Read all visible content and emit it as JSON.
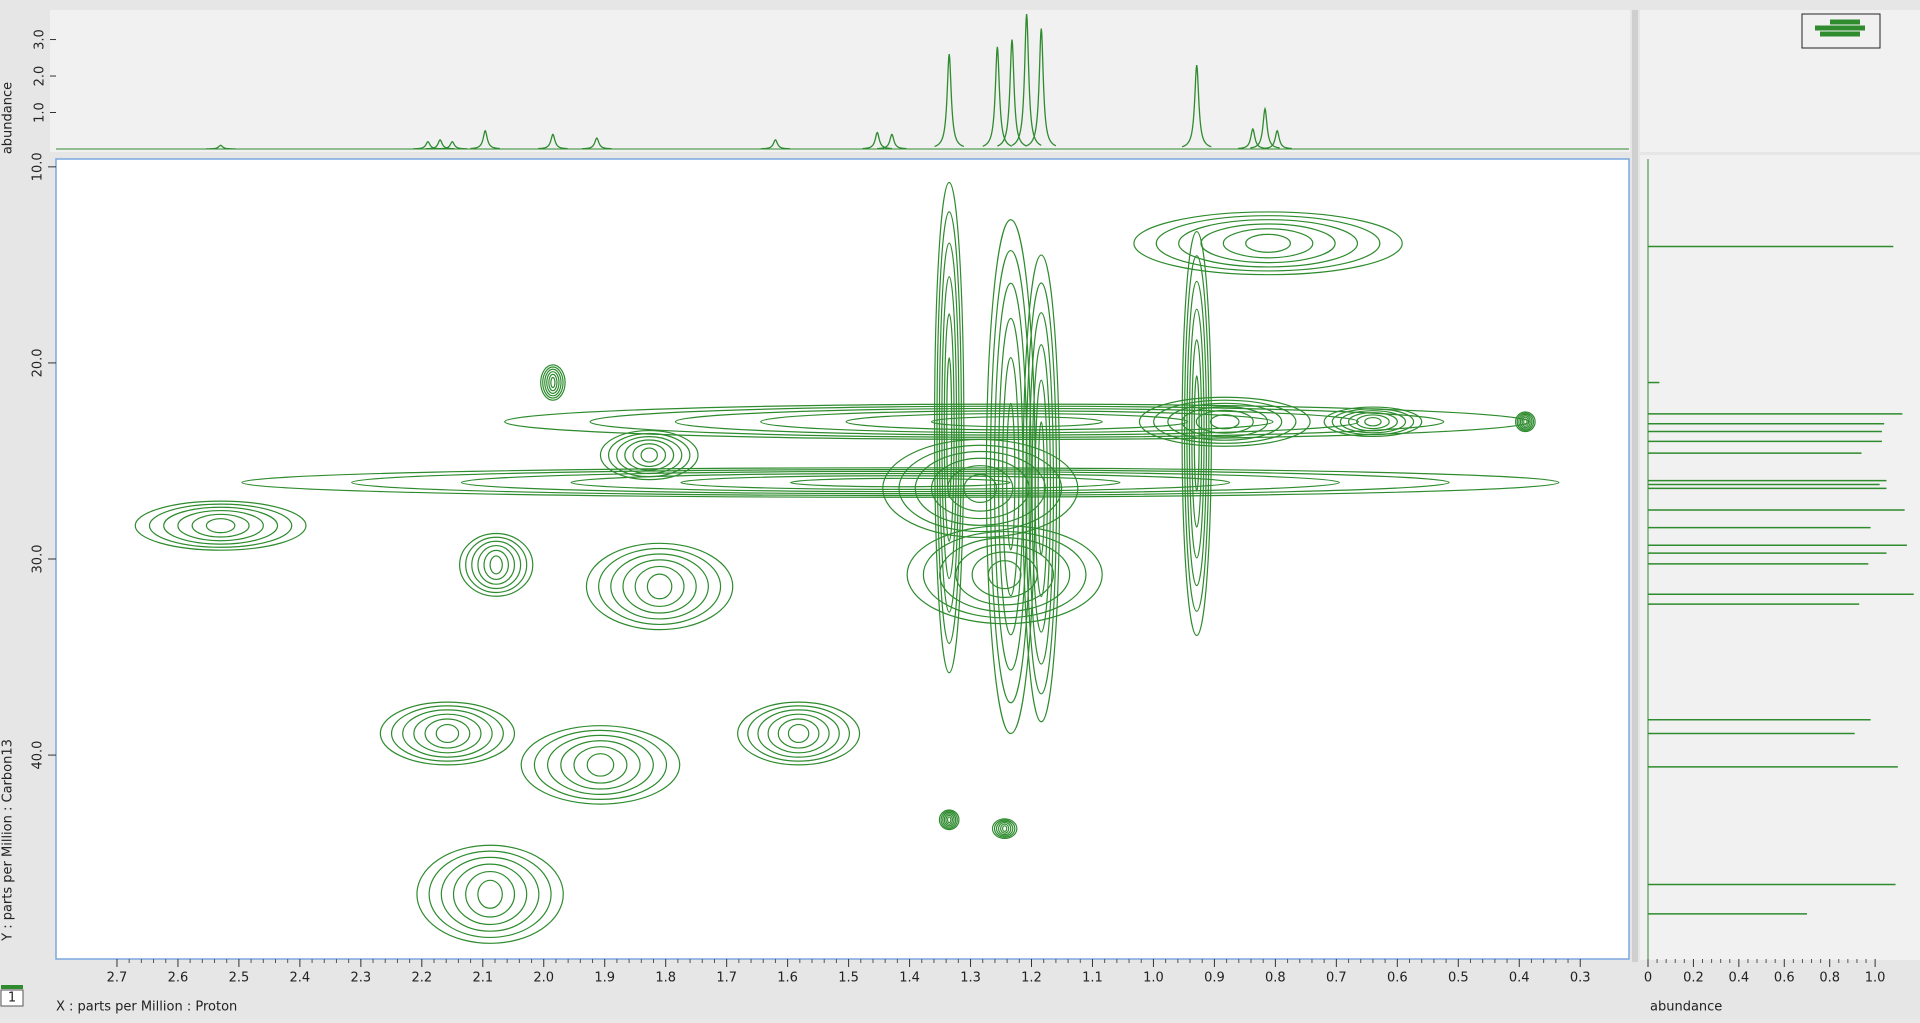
{
  "chart_data": [
    {
      "type": "spectrum",
      "ylabel": "abundance",
      "color": "#2e8b2e",
      "x": [
        2.53,
        2.19,
        2.17,
        2.15,
        2.096,
        1.985,
        1.913,
        1.62,
        1.453,
        1.429,
        1.335,
        1.256,
        1.232,
        1.208,
        1.184,
        0.929,
        0.837,
        0.817,
        0.797
      ],
      "values": [
        0.1,
        0.2,
        0.25,
        0.2,
        0.5,
        0.4,
        0.3,
        0.25,
        0.45,
        0.4,
        2.6,
        2.8,
        3.0,
        3.7,
        3.3,
        2.3,
        0.55,
        1.1,
        0.5
      ],
      "xlim": [
        2.8,
        0.22
      ],
      "ylim": [
        0,
        3.7
      ],
      "yticks": [
        {
          "value": 1,
          "label": "1.0"
        },
        {
          "value": 2,
          "label": "2.0"
        },
        {
          "value": 3,
          "label": "3.0"
        }
      ]
    },
    {
      "type": "contour",
      "xlabel": "X : parts per Million : Proton",
      "ylabel": "Y : parts per Million : Carbon13",
      "color": "#2e8b2e",
      "x": [
        2.088,
        1.907,
        2.158,
        1.582,
        2.53,
        2.078,
        1.415,
        1.81,
        1.985,
        0.812,
        1.224,
        0.883,
        0.929,
        1.335,
        1.234,
        1.184,
        1.244,
        1.284,
        0.64,
        1.335,
        1.244,
        1.827,
        0.39
      ],
      "values": [
        47.1,
        40.5,
        38.9,
        38.9,
        28.3,
        30.3,
        26.1,
        31.4,
        21.0,
        13.9,
        23.0,
        23.0,
        23.6,
        23.3,
        25.8,
        26.4,
        30.8,
        26.4,
        23.0,
        43.3,
        43.75,
        24.7,
        23.0
      ],
      "x_width": [
        0.12,
        0.13,
        0.11,
        0.1,
        0.14,
        0.06,
        1.08,
        0.12,
        0.02,
        0.22,
        0.84,
        0.14,
        0.024,
        0.024,
        0.04,
        0.03,
        0.16,
        0.16,
        0.08,
        0.016,
        0.02,
        0.08,
        0.016
      ],
      "y_width": [
        2.5,
        2.0,
        1.6,
        1.6,
        1.25,
        1.6,
        0.75,
        2.2,
        0.9,
        1.6,
        0.9,
        1.25,
        10.3,
        12.5,
        13.1,
        11.9,
        2.5,
        2.5,
        0.75,
        0.5,
        0.5,
        1.25,
        0.5
      ],
      "xlim": [
        2.8,
        0.22
      ],
      "ylim": [
        9.6,
        50.4
      ],
      "xticks": [
        2.7,
        2.6,
        2.5,
        2.4,
        2.3,
        2.2,
        2.1,
        {
          "value": 2,
          "label": "2.0"
        },
        1.9,
        1.8,
        1.7,
        1.6,
        1.5,
        1.4,
        1.3,
        1.2,
        1.1,
        {
          "value": 1,
          "label": "1.0"
        },
        0.9,
        0.8,
        0.7,
        0.6,
        0.5,
        0.4,
        0.3
      ],
      "yticks": [
        {
          "value": 10,
          "label": "10.0"
        },
        {
          "value": 20,
          "label": "20.0"
        },
        {
          "value": 30,
          "label": "30.0"
        },
        {
          "value": 40,
          "label": "40.0"
        }
      ]
    },
    {
      "type": "stick",
      "xlabel": "abundance",
      "color": "#2e8b2e",
      "y": [
        14.06,
        21.0,
        22.6,
        23.1,
        23.5,
        24.0,
        24.6,
        26.0,
        26.2,
        26.4,
        27.5,
        28.4,
        29.3,
        29.7,
        30.25,
        31.8,
        32.3,
        38.2,
        38.9,
        40.6,
        46.6,
        48.1
      ],
      "values": [
        1.08,
        0.05,
        1.12,
        1.04,
        1.03,
        1.03,
        0.94,
        1.05,
        1.02,
        1.05,
        1.13,
        0.98,
        1.14,
        1.05,
        0.97,
        1.17,
        0.93,
        0.98,
        0.91,
        1.1,
        1.09,
        0.7
      ],
      "xlim": [
        0,
        1.18
      ],
      "ylim": [
        9.6,
        50.4
      ],
      "xticks": [
        0,
        0.2,
        0.4,
        0.6,
        0.8,
        {
          "value": 1,
          "label": "1.0"
        }
      ]
    }
  ]
}
